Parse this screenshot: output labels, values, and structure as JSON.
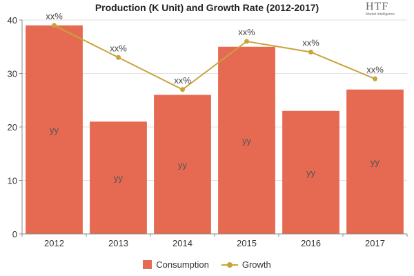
{
  "chart_data": {
    "type": "bar",
    "title": "Production (K Unit) and Growth Rate (2012-2017)",
    "categories": [
      "2012",
      "2013",
      "2014",
      "2015",
      "2016",
      "2017"
    ],
    "series": [
      {
        "name": "Consumption",
        "type": "bar",
        "color": "#e66a51",
        "values": [
          39,
          21,
          26,
          35,
          23,
          27
        ],
        "data_labels": [
          "yy",
          "yy",
          "yy",
          "yy",
          "yy",
          "yy"
        ]
      },
      {
        "name": "Growth",
        "type": "line",
        "color": "#c8a43c",
        "values": [
          39,
          33,
          27,
          36,
          34,
          29
        ],
        "data_labels": [
          "xx%",
          "xx%",
          "xx%",
          "xx%",
          "xx%",
          "xx%"
        ]
      }
    ],
    "ylim": [
      0,
      40
    ],
    "yticks": [
      0,
      10,
      20,
      30,
      40
    ],
    "xlabel": "",
    "ylabel": "",
    "grid": true,
    "legend": "bottom"
  },
  "logo": {
    "main": "HTF",
    "sub": "Market Intelligence"
  }
}
